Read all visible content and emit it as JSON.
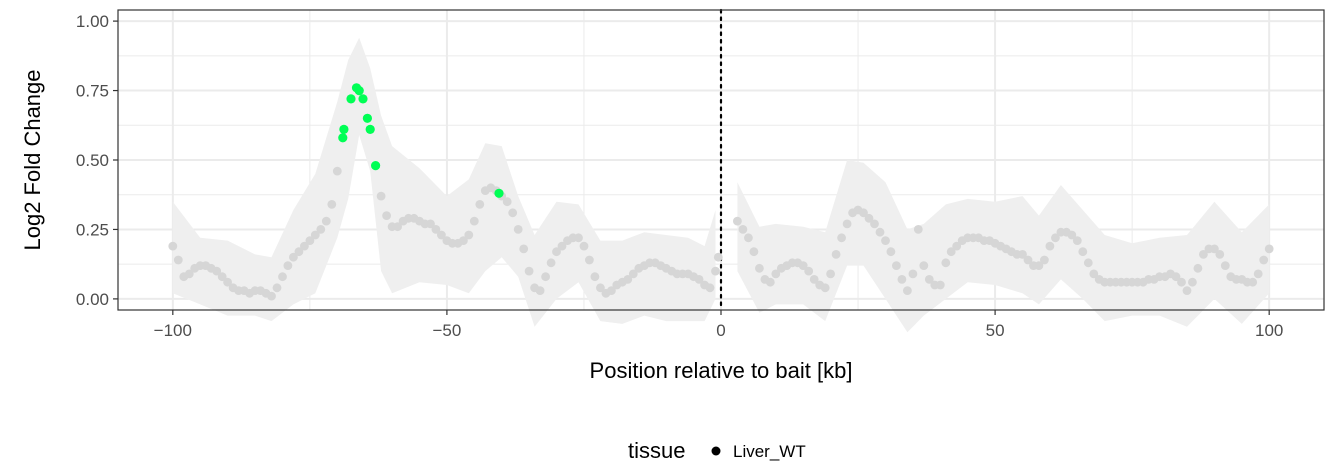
{
  "chart_data": {
    "type": "scatter",
    "xlabel": "Position relative to bait [kb]",
    "ylabel": "Log2 Fold Change",
    "xlim": [
      -110,
      110
    ],
    "ylim": [
      -0.04,
      1.04
    ],
    "x_ticks": [
      -100,
      -50,
      0,
      50,
      100
    ],
    "x_tick_labels": [
      "−100",
      "−50",
      "0",
      "50",
      "100"
    ],
    "y_ticks": [
      0,
      0.25,
      0.5,
      0.75,
      1.0
    ],
    "y_tick_labels": [
      "0.00",
      "0.25",
      "0.50",
      "0.75",
      "1.00"
    ],
    "grid": true,
    "bait_line_x": 0,
    "legend": {
      "title": "tissue",
      "position": "bottom",
      "entries": [
        {
          "label": "Liver_WT",
          "color": "#000000"
        }
      ]
    },
    "colors": {
      "background_points": "#d6d6d6",
      "significant_points": "#00ff55",
      "ribbon": "#efefef",
      "grid": "#ebebeb",
      "bait_line": "#000000"
    },
    "series": [
      {
        "name": "Liver_WT",
        "segments": [
          [
            [
              -100,
              0.19
            ],
            [
              -99,
              0.14
            ],
            [
              -98,
              0.08
            ],
            [
              -97,
              0.09
            ],
            [
              -96,
              0.11
            ],
            [
              -95,
              0.12
            ],
            [
              -94,
              0.12
            ],
            [
              -93,
              0.11
            ],
            [
              -92,
              0.1
            ],
            [
              -91,
              0.08
            ],
            [
              -90,
              0.06
            ],
            [
              -89,
              0.04
            ],
            [
              -88,
              0.03
            ],
            [
              -87,
              0.03
            ],
            [
              -86,
              0.02
            ],
            [
              -85,
              0.03
            ],
            [
              -84,
              0.03
            ],
            [
              -83,
              0.02
            ],
            [
              -82,
              0.01
            ],
            [
              -81,
              0.04
            ],
            [
              -80,
              0.08
            ],
            [
              -79,
              0.12
            ],
            [
              -78,
              0.15
            ],
            [
              -77,
              0.17
            ],
            [
              -76,
              0.19
            ],
            [
              -75,
              0.21
            ],
            [
              -74,
              0.23
            ],
            [
              -73,
              0.25
            ],
            [
              -72,
              0.28
            ],
            [
              -71,
              0.34
            ],
            [
              -70,
              0.46
            ],
            [
              -69,
              0.58
            ],
            [
              -68.8,
              0.61
            ],
            [
              -67.5,
              0.72
            ],
            [
              -66.5,
              0.76
            ],
            [
              -66,
              0.75
            ],
            [
              -65.3,
              0.72
            ],
            [
              -64.5,
              0.65
            ],
            [
              -64,
              0.61
            ],
            [
              -63,
              0.48
            ],
            [
              -62,
              0.37
            ],
            [
              -61,
              0.3
            ],
            [
              -60,
              0.26
            ],
            [
              -59,
              0.26
            ],
            [
              -58,
              0.28
            ],
            [
              -57,
              0.29
            ],
            [
              -56,
              0.29
            ],
            [
              -55,
              0.28
            ],
            [
              -54,
              0.27
            ],
            [
              -53,
              0.27
            ],
            [
              -52,
              0.25
            ],
            [
              -51,
              0.23
            ],
            [
              -50,
              0.21
            ],
            [
              -49,
              0.2
            ],
            [
              -48,
              0.2
            ],
            [
              -47,
              0.21
            ],
            [
              -46,
              0.23
            ],
            [
              -45,
              0.28
            ],
            [
              -44,
              0.34
            ],
            [
              -43,
              0.39
            ],
            [
              -42,
              0.4
            ],
            [
              -41,
              0.39
            ],
            [
              -40.5,
              0.38
            ],
            [
              -40,
              0.37
            ],
            [
              -39,
              0.35
            ],
            [
              -38,
              0.31
            ],
            [
              -37,
              0.25
            ],
            [
              -36,
              0.18
            ],
            [
              -35,
              0.1
            ],
            [
              -34,
              0.04
            ],
            [
              -33,
              0.03
            ],
            [
              -32,
              0.08
            ],
            [
              -31,
              0.13
            ],
            [
              -30,
              0.17
            ],
            [
              -29,
              0.19
            ],
            [
              -28,
              0.21
            ],
            [
              -27,
              0.22
            ],
            [
              -26,
              0.22
            ],
            [
              -25,
              0.19
            ],
            [
              -24,
              0.14
            ],
            [
              -23,
              0.08
            ],
            [
              -22,
              0.04
            ],
            [
              -21,
              0.02
            ],
            [
              -20,
              0.03
            ],
            [
              -19,
              0.05
            ],
            [
              -18,
              0.06
            ],
            [
              -17,
              0.07
            ],
            [
              -16,
              0.09
            ],
            [
              -15,
              0.11
            ],
            [
              -14,
              0.12
            ],
            [
              -13,
              0.13
            ],
            [
              -12,
              0.13
            ],
            [
              -11,
              0.12
            ],
            [
              -10,
              0.11
            ],
            [
              -9,
              0.1
            ],
            [
              -8,
              0.09
            ],
            [
              -7,
              0.09
            ],
            [
              -6,
              0.09
            ],
            [
              -5,
              0.08
            ],
            [
              -4,
              0.07
            ],
            [
              -3,
              0.05
            ],
            [
              -2,
              0.04
            ],
            [
              -1,
              0.1
            ],
            [
              -0.5,
              0.15
            ]
          ],
          [
            [
              3,
              0.28
            ],
            [
              4,
              0.25
            ],
            [
              5,
              0.22
            ],
            [
              6,
              0.17
            ],
            [
              7,
              0.11
            ],
            [
              8,
              0.07
            ],
            [
              9,
              0.06
            ],
            [
              10,
              0.09
            ],
            [
              11,
              0.11
            ],
            [
              12,
              0.12
            ],
            [
              13,
              0.13
            ],
            [
              14,
              0.13
            ],
            [
              15,
              0.12
            ],
            [
              16,
              0.1
            ],
            [
              17,
              0.07
            ],
            [
              18,
              0.05
            ],
            [
              19,
              0.04
            ],
            [
              20,
              0.09
            ],
            [
              21,
              0.16
            ],
            [
              22,
              0.22
            ],
            [
              23,
              0.27
            ],
            [
              24,
              0.31
            ],
            [
              25,
              0.32
            ],
            [
              26,
              0.31
            ],
            [
              27,
              0.29
            ],
            [
              28,
              0.27
            ],
            [
              29,
              0.24
            ],
            [
              30,
              0.21
            ],
            [
              31,
              0.17
            ],
            [
              32,
              0.12
            ],
            [
              33,
              0.07
            ],
            [
              34,
              0.03
            ],
            [
              35,
              0.09
            ],
            [
              36,
              0.25
            ],
            [
              37,
              0.12
            ],
            [
              38,
              0.07
            ],
            [
              39,
              0.05
            ],
            [
              40,
              0.05
            ],
            [
              41,
              0.13
            ],
            [
              42,
              0.17
            ],
            [
              43,
              0.19
            ],
            [
              44,
              0.21
            ],
            [
              45,
              0.22
            ],
            [
              46,
              0.22
            ],
            [
              47,
              0.22
            ],
            [
              48,
              0.21
            ],
            [
              49,
              0.21
            ],
            [
              50,
              0.2
            ],
            [
              51,
              0.19
            ],
            [
              52,
              0.18
            ],
            [
              53,
              0.17
            ],
            [
              54,
              0.16
            ],
            [
              55,
              0.16
            ],
            [
              56,
              0.14
            ],
            [
              57,
              0.12
            ],
            [
              58,
              0.12
            ],
            [
              59,
              0.14
            ],
            [
              60,
              0.19
            ],
            [
              61,
              0.22
            ],
            [
              62,
              0.24
            ],
            [
              63,
              0.24
            ],
            [
              64,
              0.23
            ],
            [
              65,
              0.21
            ],
            [
              66,
              0.17
            ],
            [
              67,
              0.13
            ],
            [
              68,
              0.09
            ],
            [
              69,
              0.07
            ],
            [
              70,
              0.06
            ],
            [
              71,
              0.06
            ],
            [
              72,
              0.06
            ],
            [
              73,
              0.06
            ],
            [
              74,
              0.06
            ],
            [
              75,
              0.06
            ],
            [
              76,
              0.06
            ],
            [
              77,
              0.06
            ],
            [
              78,
              0.07
            ],
            [
              79,
              0.07
            ],
            [
              80,
              0.08
            ],
            [
              81,
              0.08
            ],
            [
              82,
              0.09
            ],
            [
              83,
              0.08
            ],
            [
              84,
              0.06
            ],
            [
              85,
              0.03
            ],
            [
              86,
              0.06
            ],
            [
              87,
              0.11
            ],
            [
              88,
              0.16
            ],
            [
              89,
              0.18
            ],
            [
              90,
              0.18
            ],
            [
              91,
              0.16
            ],
            [
              92,
              0.12
            ],
            [
              93,
              0.08
            ],
            [
              94,
              0.07
            ],
            [
              95,
              0.07
            ],
            [
              96,
              0.06
            ],
            [
              97,
              0.06
            ],
            [
              98,
              0.09
            ],
            [
              99,
              0.14
            ],
            [
              100,
              0.18
            ]
          ]
        ]
      }
    ],
    "significant_points": [
      [
        -69,
        0.58
      ],
      [
        -68.8,
        0.61
      ],
      [
        -67.5,
        0.72
      ],
      [
        -66.5,
        0.76
      ],
      [
        -66,
        0.75
      ],
      [
        -65.3,
        0.72
      ],
      [
        -64.5,
        0.65
      ],
      [
        -64,
        0.61
      ],
      [
        -63,
        0.48
      ],
      [
        -40.5,
        0.38
      ]
    ],
    "ribbon_segments": [
      {
        "x": [
          -100,
          -95,
          -90,
          -85,
          -82,
          -78,
          -74,
          -70,
          -68,
          -66,
          -64,
          -62,
          -60,
          -55,
          -50,
          -46,
          -43,
          -40,
          -37,
          -34,
          -30,
          -26,
          -22,
          -18,
          -14,
          -10,
          -6,
          -3,
          -1
        ],
        "upper": [
          0.35,
          0.22,
          0.21,
          0.16,
          0.15,
          0.32,
          0.45,
          0.71,
          0.86,
          0.94,
          0.83,
          0.66,
          0.55,
          0.47,
          0.37,
          0.43,
          0.56,
          0.55,
          0.37,
          0.23,
          0.35,
          0.34,
          0.21,
          0.21,
          0.24,
          0.23,
          0.22,
          0.19,
          0.32
        ],
        "lower": [
          0.02,
          -0.02,
          -0.06,
          -0.06,
          -0.08,
          -0.02,
          0.02,
          0.22,
          0.36,
          0.59,
          0.46,
          0.1,
          0.02,
          0.06,
          0.05,
          0.02,
          0.1,
          0.15,
          0.08,
          -0.1,
          0.0,
          0.06,
          -0.08,
          -0.09,
          -0.06,
          -0.08,
          -0.08,
          -0.08,
          0.0
        ]
      },
      {
        "x": [
          3,
          7,
          10,
          15,
          19,
          23,
          26,
          30,
          34,
          37,
          41,
          45,
          50,
          55,
          58,
          62,
          66,
          70,
          75,
          80,
          85,
          90,
          95,
          100
        ],
        "upper": [
          0.42,
          0.26,
          0.27,
          0.26,
          0.24,
          0.5,
          0.49,
          0.42,
          0.25,
          0.27,
          0.34,
          0.36,
          0.35,
          0.37,
          0.3,
          0.41,
          0.32,
          0.23,
          0.2,
          0.22,
          0.23,
          0.35,
          0.24,
          0.34
        ],
        "lower": [
          0.1,
          -0.05,
          -0.02,
          -0.02,
          -0.08,
          0.12,
          0.12,
          0.0,
          -0.12,
          -0.06,
          0.0,
          0.06,
          0.05,
          0.02,
          -0.02,
          0.07,
          0.0,
          -0.08,
          -0.06,
          -0.06,
          -0.1,
          0.0,
          -0.09,
          0.02
        ]
      }
    ]
  }
}
